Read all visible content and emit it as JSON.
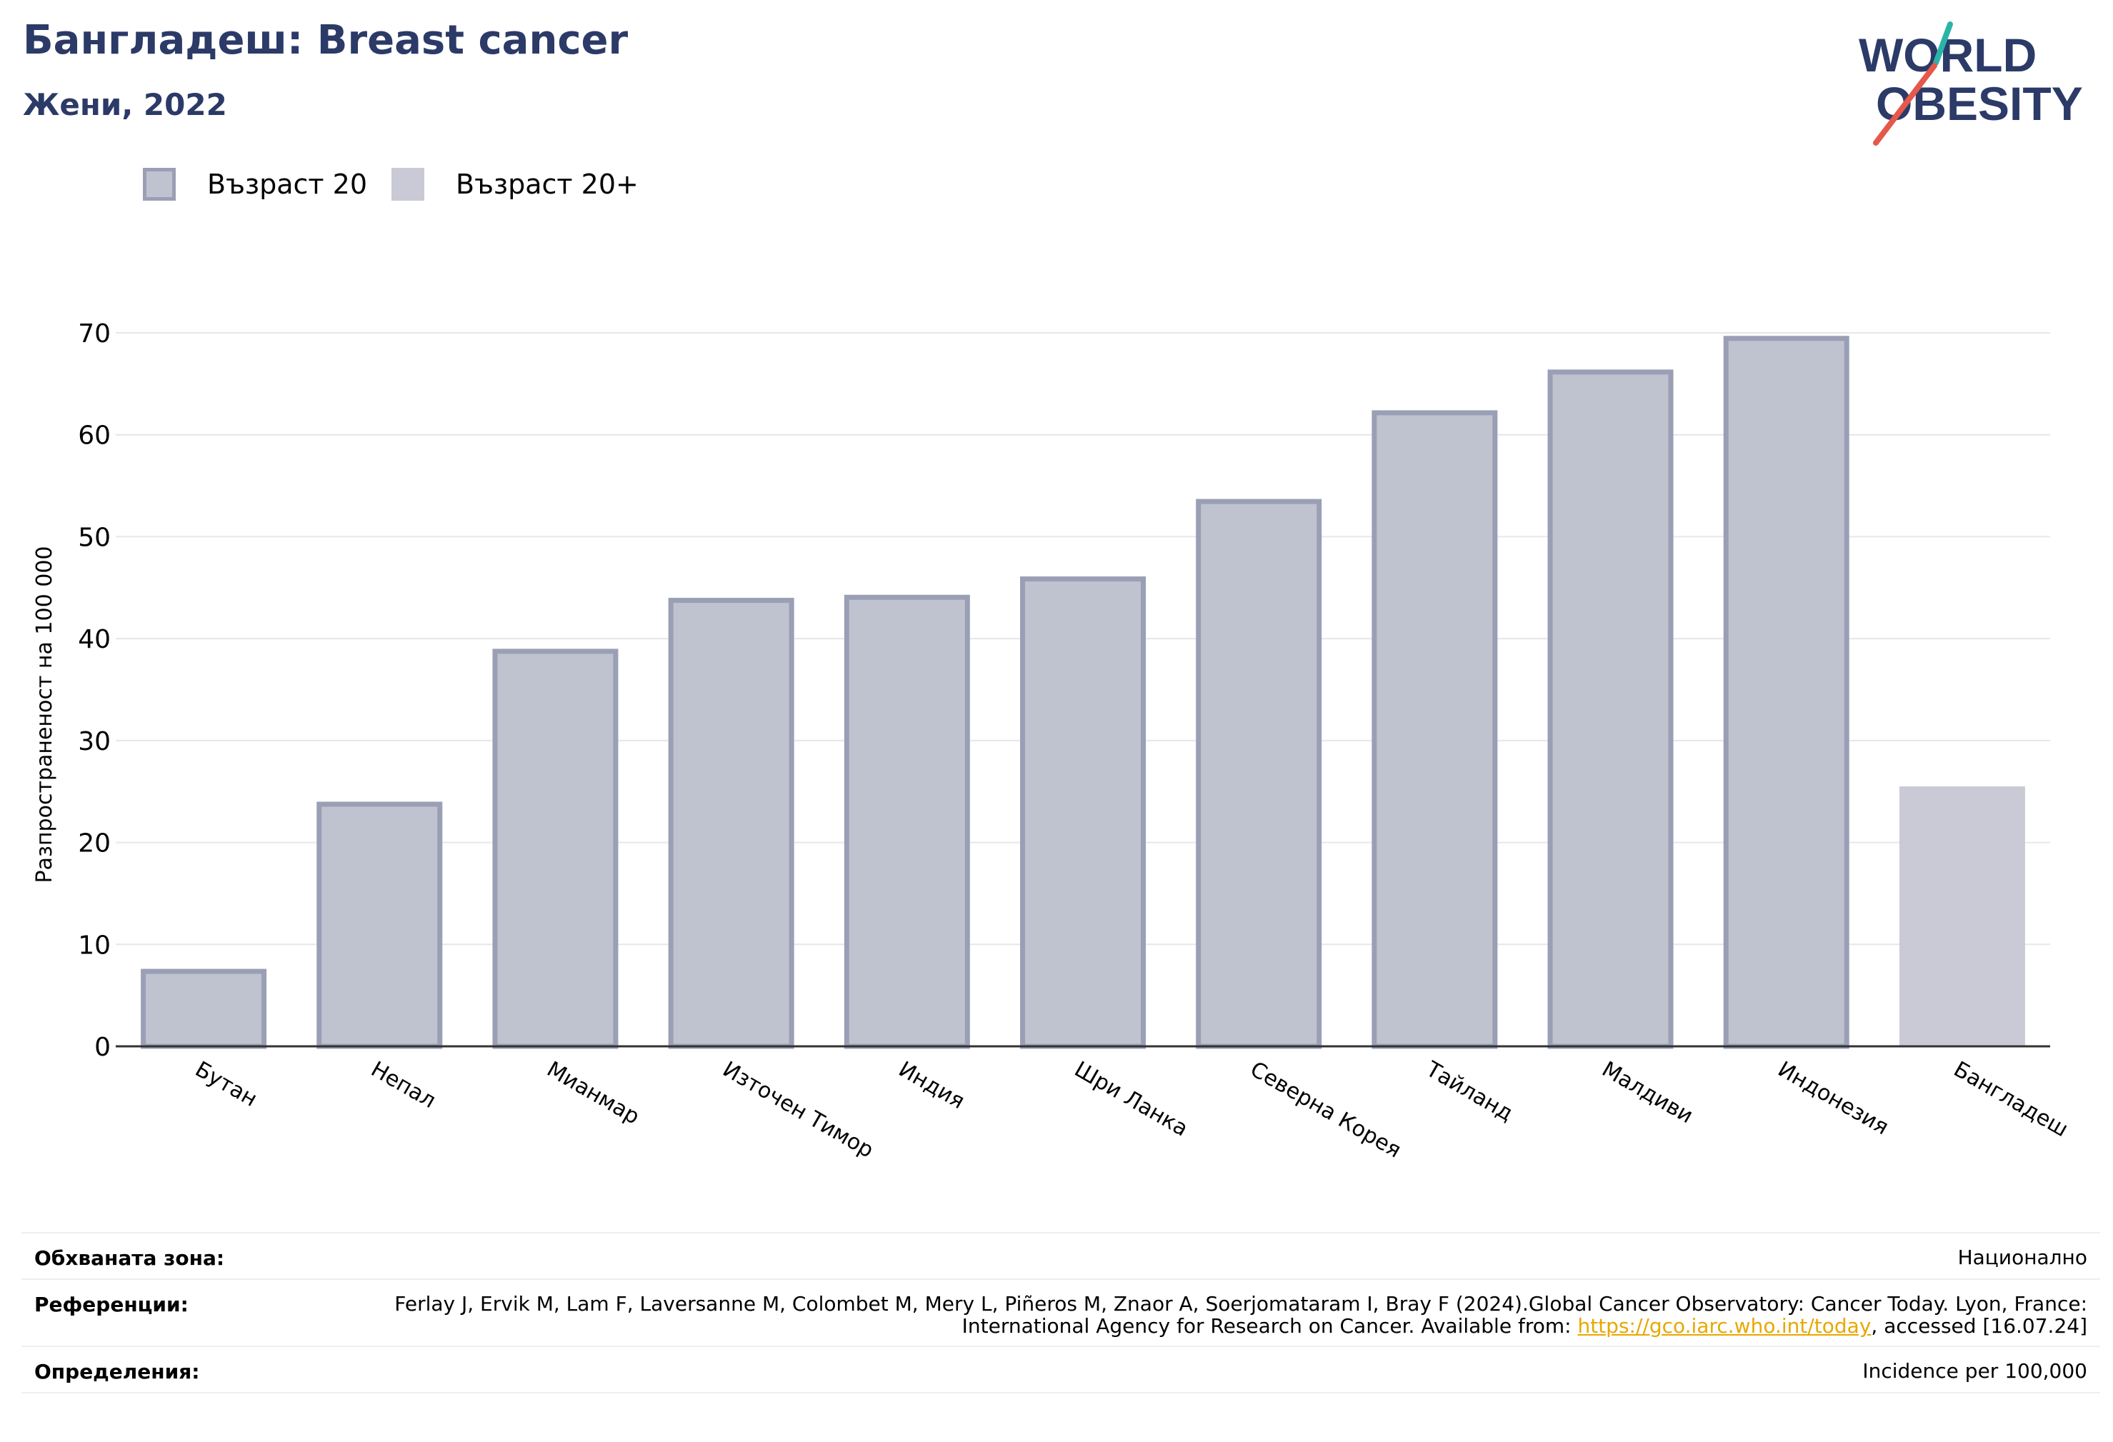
{
  "header": {
    "title": "Бангладеш: Breast cancer",
    "subtitle": "Жени, 2022"
  },
  "logo": {
    "line1": "WORLD",
    "line2": "OBESITY"
  },
  "legend": {
    "items": [
      "Възраст 20",
      "Възраст 20+"
    ]
  },
  "chart_data": {
    "type": "bar",
    "title": "Бангладеш: Breast cancer",
    "subtitle": "Жени, 2022",
    "ylabel": "Разпространеност  на 100 000",
    "xlabel": "",
    "ylim": [
      0,
      70
    ],
    "yticks": [
      0,
      10,
      20,
      30,
      40,
      50,
      60,
      70
    ],
    "grid": true,
    "legend_position": "top-left",
    "categories": [
      "Бутан",
      "Непал",
      "Мианмар",
      "Източен Тимор",
      "Индия",
      "Шри Ланка",
      "Северна Корея",
      "Тайланд",
      "Малдиви",
      "Индонезия",
      "Бангладеш"
    ],
    "series": [
      {
        "name": "Възраст 20",
        "color": "#bfc2cf",
        "edge_color": "#9a9fb5",
        "values": [
          7.6,
          24.0,
          39.0,
          44.0,
          44.3,
          46.1,
          53.7,
          62.4,
          66.4,
          69.7,
          null
        ]
      },
      {
        "name": "Възраст 20+",
        "color": "#c9cad6",
        "values": [
          null,
          null,
          null,
          null,
          null,
          null,
          null,
          null,
          null,
          null,
          25.5
        ]
      }
    ]
  },
  "info": {
    "coverage_label": "Обхваната зона:",
    "coverage_value": "Национално",
    "references_label": "Референции:",
    "references_text_1": "Ferlay J, Ervik M, Lam F, Laversanne M, Colombet M, Mery L, Piñeros M, Znaor A, Soerjomataram I, Bray F (2024).Global Cancer Observatory: Cancer Today. Lyon, France: International Agency for Research on Cancer. Available from: ",
    "references_link": "https://gco.iarc.who.int/today",
    "references_text_2": ", accessed [16.07.24]",
    "definitions_label": "Определения:",
    "definitions_value": "Incidence per 100,000"
  }
}
